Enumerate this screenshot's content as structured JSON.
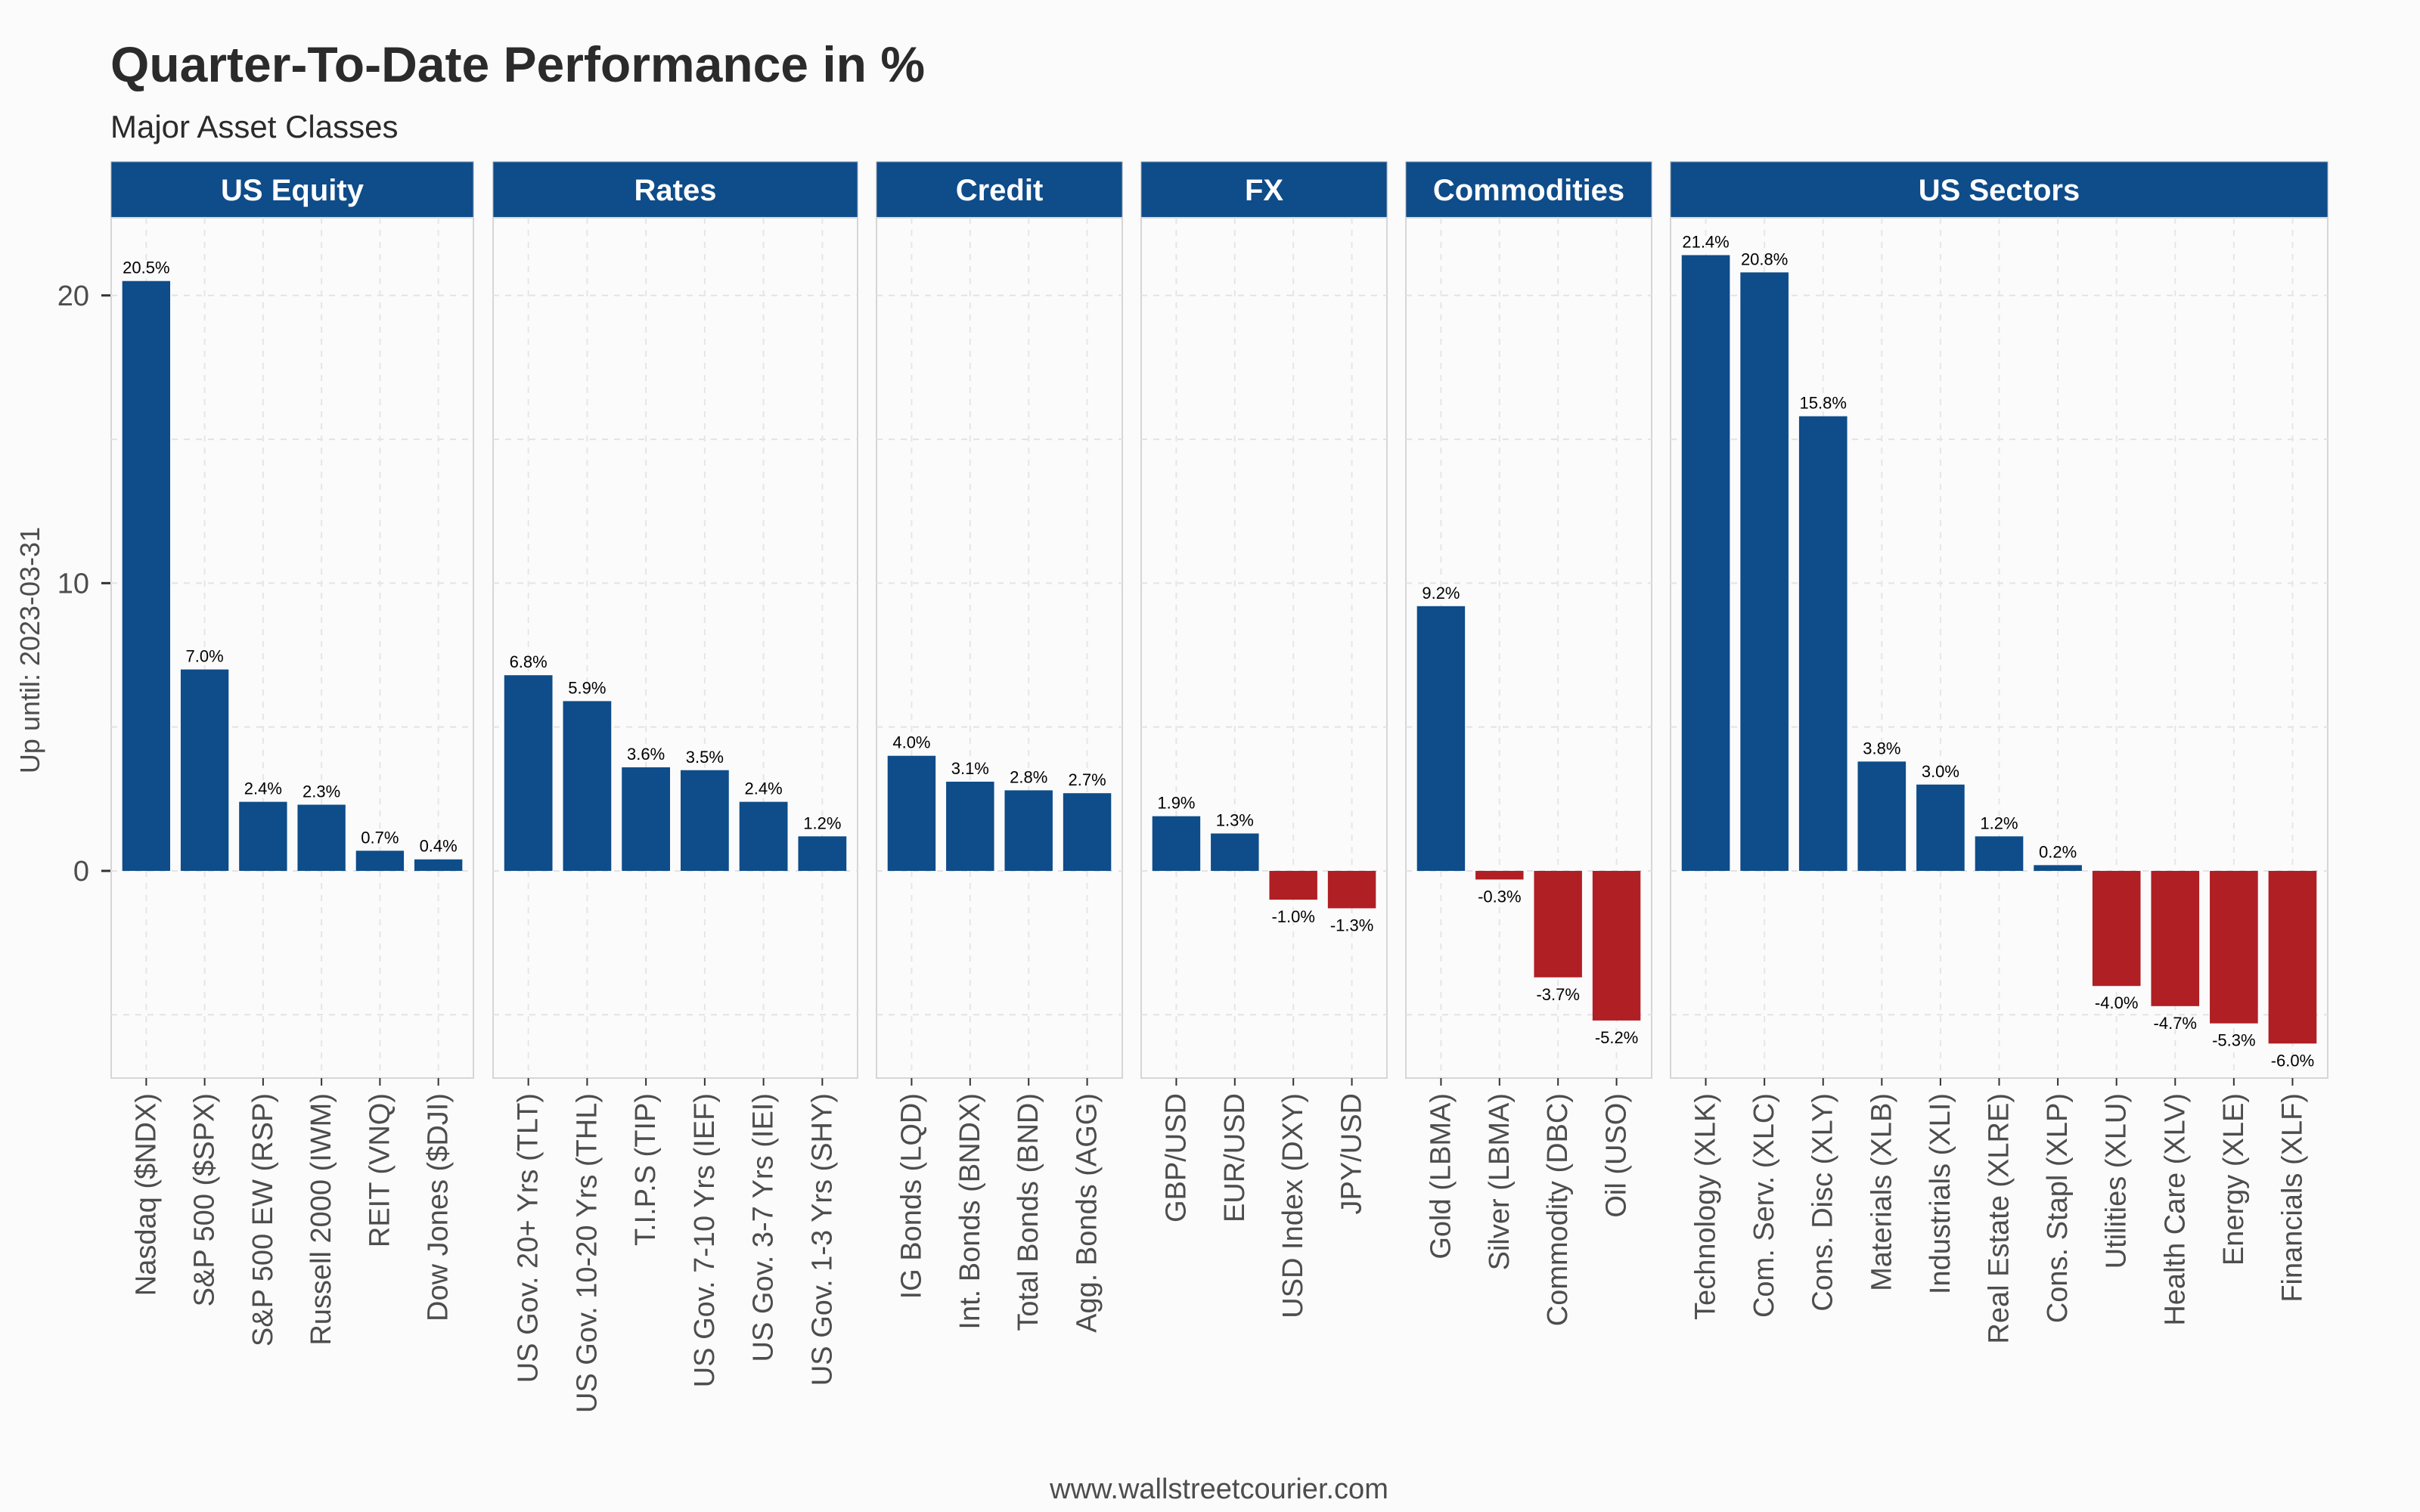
{
  "title": "Quarter-To-Date Performance in %",
  "subtitle": "Major Asset Classes",
  "footer": "www.wallstreetcourier.com",
  "colors": {
    "positive": "#0e4c8a",
    "negative": "#b01f24",
    "strip": "#0e4c8a",
    "background": "#fbfbfb"
  },
  "chart_data": {
    "type": "bar",
    "ylabel": "Up until: 2023-03-31",
    "ylim": [
      -7.2,
      22.7
    ],
    "yticks": [
      0,
      10,
      20
    ],
    "grid": true,
    "facets": [
      {
        "name": "US Equity",
        "categories": [
          "Nasdaq ($NDX)",
          "S&P 500 ($SPX)",
          "S&P 500 EW (RSP)",
          "Russell 2000 (IWM)",
          "REIT (VNQ)",
          "Dow Jones ($DJI)"
        ],
        "values": [
          20.5,
          7.0,
          2.4,
          2.3,
          0.7,
          0.4
        ],
        "labels": [
          "20.5%",
          "7.0%",
          "2.4%",
          "2.3%",
          "0.7%",
          "0.4%"
        ]
      },
      {
        "name": "Rates",
        "categories": [
          "US Gov. 20+ Yrs (TLT)",
          "US Gov. 10-20 Yrs (THL)",
          "T.I.P.S (TIP)",
          "US Gov. 7-10 Yrs (IEF)",
          "US Gov. 3-7 Yrs (IEI)",
          "US Gov. 1-3 Yrs (SHY)"
        ],
        "values": [
          6.8,
          5.9,
          3.6,
          3.5,
          2.4,
          1.2
        ],
        "labels": [
          "6.8%",
          "5.9%",
          "3.6%",
          "3.5%",
          "2.4%",
          "1.2%"
        ]
      },
      {
        "name": "Credit",
        "categories": [
          "IG Bonds (LQD)",
          "Int. Bonds (BNDX)",
          "Total Bonds (BND)",
          "Agg. Bonds (AGG)"
        ],
        "values": [
          4.0,
          3.1,
          2.8,
          2.7
        ],
        "labels": [
          "4.0%",
          "3.1%",
          "2.8%",
          "2.7%"
        ]
      },
      {
        "name": "FX",
        "categories": [
          "GBP/USD",
          "EUR/USD",
          "USD Index (DXY)",
          "JPY/USD"
        ],
        "values": [
          1.9,
          1.3,
          -1.0,
          -1.3
        ],
        "labels": [
          "1.9%",
          "1.3%",
          "-1.0%",
          "-1.3%"
        ]
      },
      {
        "name": "Commodities",
        "categories": [
          "Gold (LBMA)",
          "Silver (LBMA)",
          "Commodity (DBC)",
          "Oil (USO)"
        ],
        "values": [
          9.2,
          -0.3,
          -3.7,
          -5.2
        ],
        "labels": [
          "9.2%",
          "-0.3%",
          "-3.7%",
          "-5.2%"
        ]
      },
      {
        "name": "US Sectors",
        "categories": [
          "Technology (XLK)",
          "Com. Serv. (XLC)",
          "Cons. Disc (XLY)",
          "Materials (XLB)",
          "Industrials (XLI)",
          "Real Estate (XLRE)",
          "Cons. Stapl (XLP)",
          "Utilities (XLU)",
          "Health Care (XLV)",
          "Energy (XLE)",
          "Financials (XLF)"
        ],
        "values": [
          21.4,
          20.8,
          15.8,
          3.8,
          3.0,
          1.2,
          0.2,
          -4.0,
          -4.7,
          -5.3,
          -6.0
        ],
        "labels": [
          "21.4%",
          "20.8%",
          "15.8%",
          "3.8%",
          "3.0%",
          "1.2%",
          "0.2%",
          "-4.0%",
          "-4.7%",
          "-5.3%",
          "-6.0%"
        ]
      }
    ]
  }
}
